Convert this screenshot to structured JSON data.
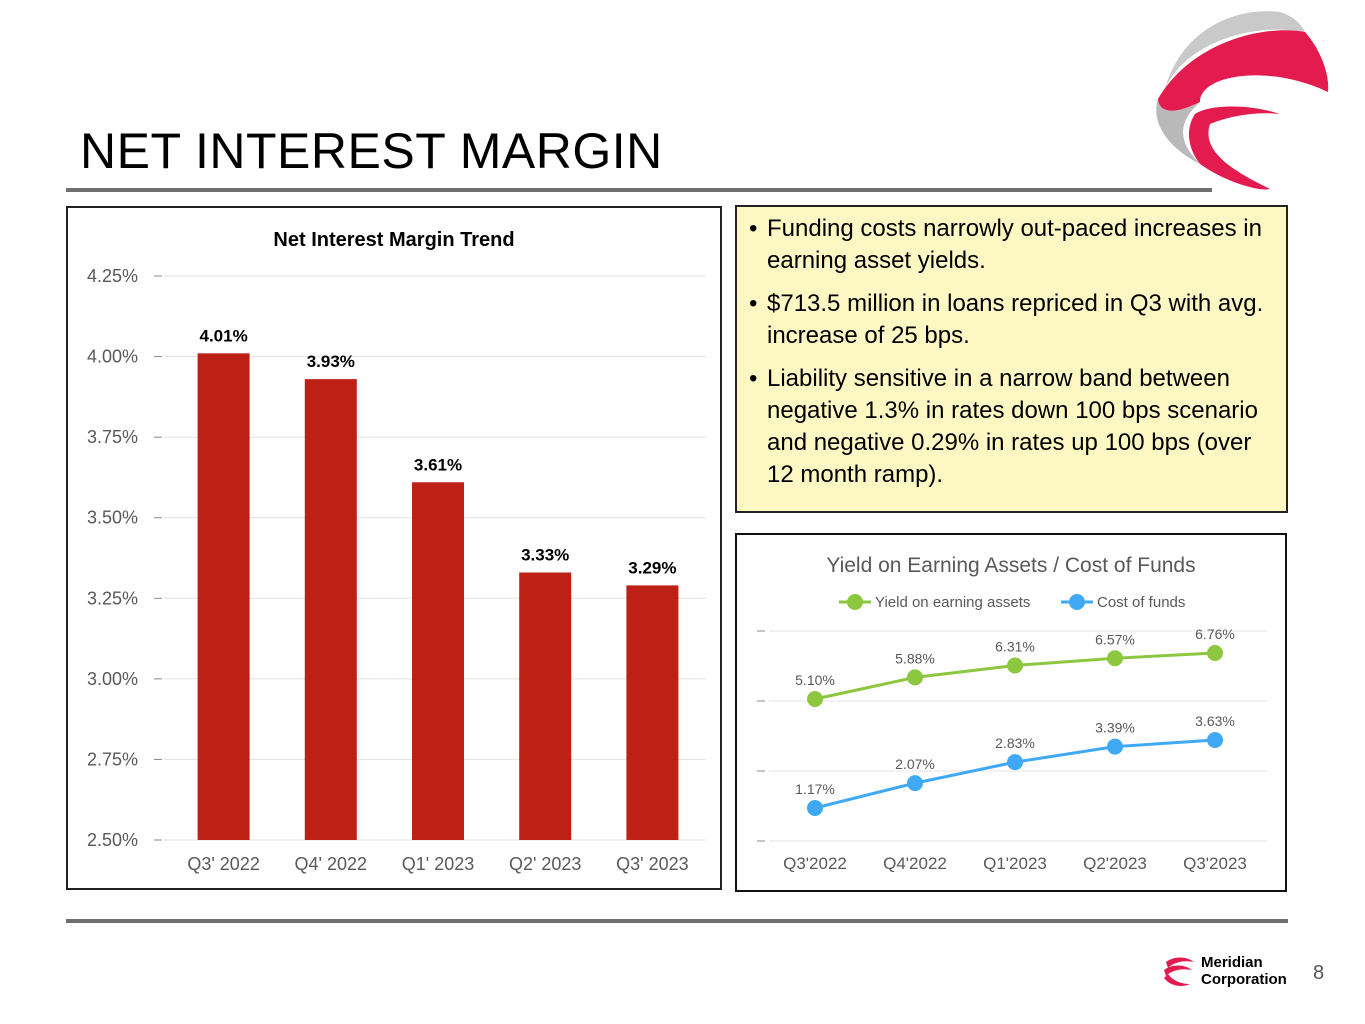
{
  "page": {
    "title": "NET INTEREST MARGIN",
    "page_number": "8",
    "footer_company": "Meridian\nCorporation",
    "colors": {
      "logo_red": "#e31b4f",
      "logo_grey": "#b8b8b8",
      "rule": "#6f6f6f",
      "callout_bg": "#fdf7c3"
    }
  },
  "callout": {
    "bullets": [
      "Funding costs narrowly out-paced increases in earning asset yields.",
      "$713.5 million in loans repriced in Q3 with avg. increase of 25 bps.",
      "Liability sensitive in a narrow band between negative 1.3% in rates down 100 bps scenario and negative 0.29% in rates up 100 bps (over 12 month ramp)."
    ]
  },
  "chart_data": [
    {
      "type": "bar",
      "title": "Net Interest Margin Trend",
      "categories": [
        "Q3' 2022",
        "Q4' 2022",
        "Q1' 2023",
        "Q2' 2023",
        "Q3' 2023"
      ],
      "values": [
        4.01,
        3.93,
        3.61,
        3.33,
        3.29
      ],
      "data_labels": [
        "4.01%",
        "3.93%",
        "3.61%",
        "3.33%",
        "3.29%"
      ],
      "yticks": [
        "2.50%",
        "2.75%",
        "3.00%",
        "3.25%",
        "3.50%",
        "3.75%",
        "4.00%",
        "4.25%"
      ],
      "ylim": [
        2.5,
        4.25
      ],
      "grid": true,
      "color": "#bd2015"
    },
    {
      "type": "line",
      "title": "Yield on Earning Assets  / Cost of Funds",
      "categories": [
        "Q3'2022",
        "Q4'2022",
        "Q1'2023",
        "Q2'2023",
        "Q3'2023"
      ],
      "series": [
        {
          "name": "Yield on earning assets",
          "values": [
            5.1,
            5.88,
            6.31,
            6.57,
            6.76
          ],
          "labels": [
            "5.10%",
            "5.88%",
            "6.31%",
            "6.57%",
            "6.76%"
          ],
          "color": "#8dc63f"
        },
        {
          "name": "Cost of funds",
          "values": [
            1.17,
            2.07,
            2.83,
            3.39,
            3.63
          ],
          "labels": [
            "1.17%",
            "2.07%",
            "2.83%",
            "3.39%",
            "3.63%"
          ],
          "color": "#3fa9f5"
        }
      ],
      "legend": "top",
      "grid": true
    }
  ]
}
